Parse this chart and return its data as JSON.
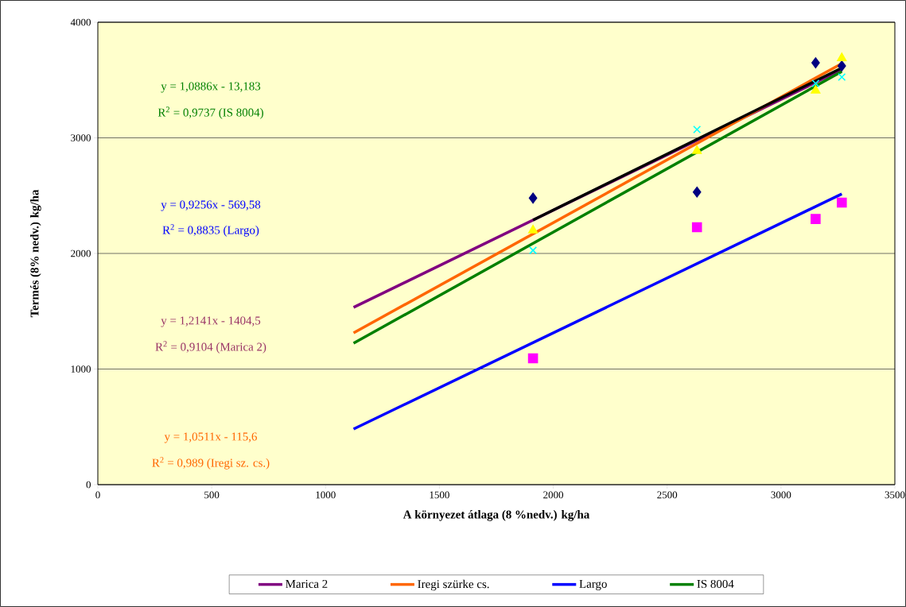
{
  "chart_data": {
    "type": "scatter",
    "xlabel": "A környezet átlaga (8 %nedv.) kg/ha",
    "ylabel": "Termés (8% nedv.) kg/ha",
    "xlim": [
      0,
      3500
    ],
    "xticks": [
      0,
      500,
      1000,
      1500,
      2000,
      2500,
      3000,
      3500
    ],
    "ylim": [
      0,
      4000
    ],
    "yticks": [
      0,
      1000,
      2000,
      3000,
      4000
    ],
    "grid": "y",
    "legend": "bottom",
    "series": [
      {
        "type": "scatter",
        "marker": "diamond",
        "color": "#000080",
        "x": [
          1911,
          2631,
          3152,
          3267
        ],
        "values": [
          2479,
          2531,
          3649,
          3622
        ]
      },
      {
        "type": "scatter",
        "marker": "square",
        "color": "#ff00ff",
        "x": [
          1911,
          2631,
          3152,
          3267
        ],
        "values": [
          1093,
          2227,
          2298,
          2440
        ]
      },
      {
        "type": "scatter",
        "marker": "triangle",
        "color": "#ffff00",
        "x": [
          1911,
          2631,
          3152,
          3267
        ],
        "values": [
          2200,
          2887,
          3409,
          3690
        ]
      },
      {
        "type": "scatter",
        "marker": "cross",
        "color": "#00ffff",
        "x": [
          1911,
          2631,
          3152,
          3267
        ],
        "values": [
          2027,
          3072,
          3471,
          3526
        ]
      },
      {
        "type": "line",
        "name": "Marica 2",
        "color": "#800080",
        "x": [
          1123,
          3267
        ],
        "values": [
          1533,
          3589
        ]
      },
      {
        "type": "line",
        "name": "Iregi szürke cs.",
        "color": "#ff6600",
        "x": [
          1123,
          3267
        ],
        "values": [
          1313,
          3643
        ]
      },
      {
        "type": "line",
        "name": "Largo",
        "color": "#0000ff",
        "x": [
          1123,
          3267
        ],
        "values": [
          481,
          2515
        ]
      },
      {
        "type": "line",
        "name": "IS 8004",
        "color": "#008000",
        "x": [
          1123,
          3267
        ],
        "values": [
          1223,
          3574
        ]
      },
      {
        "type": "line",
        "color": "#000000",
        "x": [
          1911,
          3267
        ],
        "values": [
          2289,
          3605
        ]
      }
    ],
    "annotations": [
      "y = 1,0886x - 13,183",
      "R$^{2}$ = 0,9737 (IS 8004)",
      "y = 0,9256x - 569,58",
      "R$^{2}$ = 0,8835 (Largo)",
      "y = 1,2141x - 1404,5",
      "R$^{2}$ = 0,9104 (Marica 2)",
      "y = 1,0511x - 115,6",
      "R$^{2}$ = 0,989 (Iregi sz. cs.)"
    ]
  }
}
